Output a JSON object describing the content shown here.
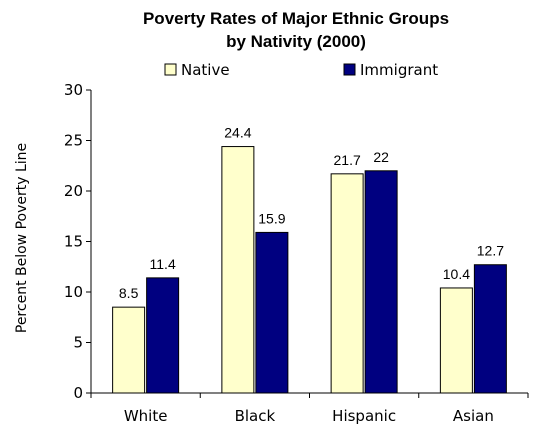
{
  "chart_data": {
    "type": "bar",
    "title_lines": [
      "Poverty Rates of Major Ethnic Groups",
      "by Nativity (2000)"
    ],
    "xlabel": "",
    "ylabel": "Percent Below Poverty Line",
    "categories": [
      "White",
      "Black",
      "Hispanic",
      "Asian"
    ],
    "series": [
      {
        "name": "Native",
        "values": [
          8.5,
          24.4,
          21.7,
          10.4
        ],
        "labels": [
          "8.5",
          "24.4",
          "21.7",
          "10.4"
        ],
        "color": "#FFFFCC"
      },
      {
        "name": "Immigrant",
        "values": [
          11.4,
          15.9,
          22,
          12.7
        ],
        "labels": [
          "11.4",
          "15.9",
          "22",
          "12.7"
        ],
        "color": "#000080"
      }
    ],
    "ylim": [
      0,
      30
    ],
    "yticks": [
      0,
      5,
      10,
      15,
      20,
      25,
      30
    ],
    "grid": false,
    "legend_position": "top"
  }
}
